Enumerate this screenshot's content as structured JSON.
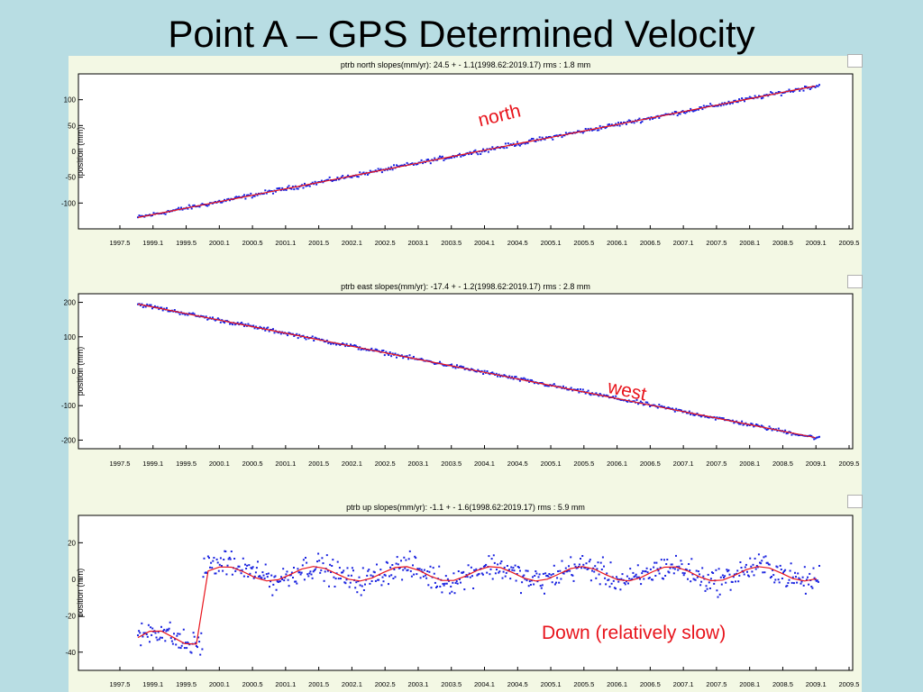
{
  "slide": {
    "title": "Point A – GPS Determined Velocity"
  },
  "annotations": {
    "north": "north",
    "west": "west",
    "down": "Down (relatively slow)"
  },
  "colors": {
    "background": "#b8dde3",
    "panel": "#f3f8e4",
    "points": "#1a23e0",
    "fit_line": "#e8141c",
    "annotation": "#e8141c"
  },
  "chart_data": [
    {
      "type": "scatter",
      "title": "ptrb north slopes(mm/yr): 24.5 + - 1.1(1998.62:2019.17) rms : 1.8 mm",
      "ylabel": "position (mm)",
      "xlabel": "",
      "x_ticks": [
        "1997.5",
        "1999.1",
        "1999.5",
        "2000.1",
        "2000.5",
        "2001.1",
        "2001.5",
        "2002.1",
        "2002.5",
        "2003.1",
        "2003.5",
        "2004.1",
        "2004.5",
        "2005.1",
        "2005.5",
        "2006.1",
        "2006.5",
        "2007.1",
        "2007.5",
        "2008.1",
        "2008.5",
        "2009.1",
        "2009.5"
      ],
      "y_ticks": [
        "100",
        "50",
        "0",
        "-50",
        "-100"
      ],
      "y_tick_values": [
        100,
        50,
        0,
        -50,
        -100
      ],
      "ylim": [
        -150,
        150
      ],
      "series": [
        {
          "start": -128,
          "end": 128,
          "noise": 3
        }
      ],
      "grid": false
    },
    {
      "type": "scatter",
      "title": "ptrb east slopes(mm/yr): -17.4 + - 1.2(1998.62:2019.17) rms : 2.8 mm",
      "ylabel": "position (mm)",
      "xlabel": "",
      "x_ticks": [
        "1997.5",
        "1999.1",
        "1999.5",
        "2000.1",
        "2000.5",
        "2001.1",
        "2001.5",
        "2002.1",
        "2002.5",
        "2003.1",
        "2003.5",
        "2004.1",
        "2004.5",
        "2005.1",
        "2005.5",
        "2006.1",
        "2006.5",
        "2007.1",
        "2007.5",
        "2008.1",
        "2008.5",
        "2009.1",
        "2009.5"
      ],
      "y_ticks": [
        "200",
        "100",
        "0",
        "-100",
        "-200"
      ],
      "y_tick_values": [
        200,
        100,
        0,
        -100,
        -200
      ],
      "ylim": [
        -225,
        225
      ],
      "series": [
        {
          "start": 195,
          "end": -195,
          "noise": 4
        }
      ],
      "grid": false
    },
    {
      "type": "scatter",
      "title": "ptrb up slopes(mm/yr): -1.1 + - 1.6(1998.62:2019.17) rms : 5.9 mm",
      "ylabel": "position (mm)",
      "xlabel": "",
      "x_ticks": [
        "1997.5",
        "1999.1",
        "1999.5",
        "2000.1",
        "2000.5",
        "2001.1",
        "2001.5",
        "2002.1",
        "2002.5",
        "2003.1",
        "2003.5",
        "2004.1",
        "2004.5",
        "2005.1",
        "2005.5",
        "2006.1",
        "2006.5",
        "2007.1",
        "2007.5",
        "2008.1",
        "2008.5",
        "2009.1",
        "2009.5"
      ],
      "y_ticks": [
        "20",
        "0",
        "-20",
        "-40"
      ],
      "y_tick_values": [
        20,
        0,
        -20,
        -40
      ],
      "ylim": [
        -50,
        35
      ],
      "series": [
        {
          "offset_before": -32,
          "offset_after": 3,
          "amplitude": 4,
          "noise": 5
        }
      ],
      "grid": false
    }
  ]
}
